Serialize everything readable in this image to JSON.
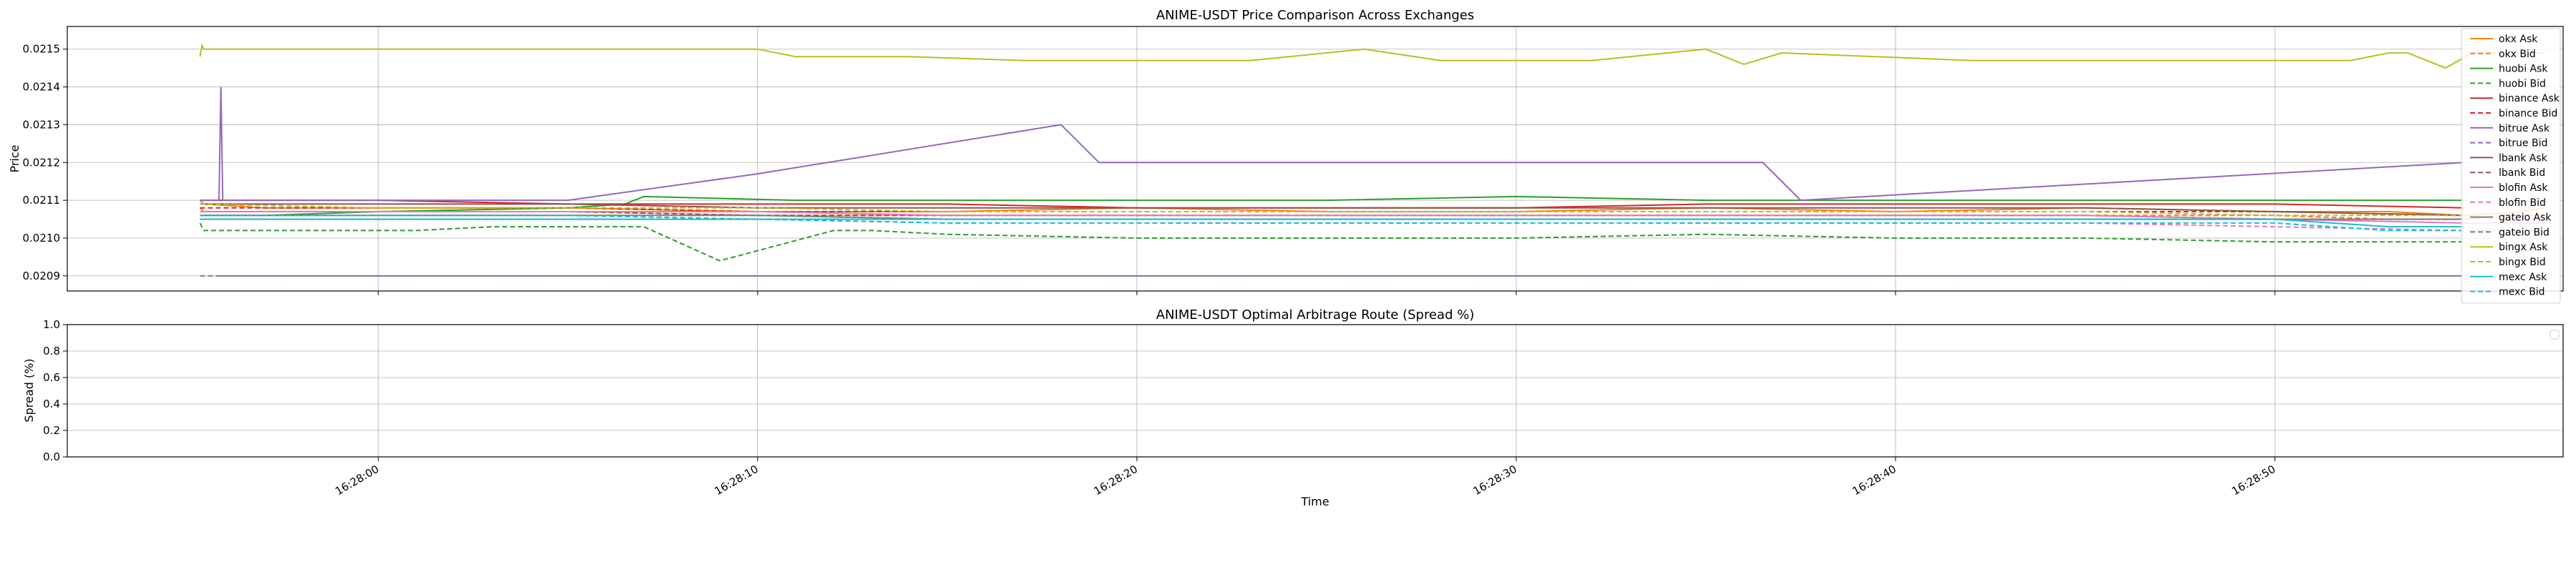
{
  "chart_data": [
    {
      "type": "line",
      "title": "ANIME-USDT Price Comparison Across Exchanges",
      "xlabel": "",
      "ylabel": "Price",
      "x_ticks": [
        "16:28:00",
        "16:28:10",
        "16:28:20",
        "16:28:30",
        "16:28:40",
        "16:28:50"
      ],
      "y_ticks": [
        "0.0209",
        "0.0210",
        "0.0211",
        "0.0212",
        "0.0213",
        "0.0214",
        "0.0215"
      ],
      "x_unit": "seconds after 16:27:55",
      "xlim": [
        -3.2,
        62.6
      ],
      "ylim": [
        0.02086,
        0.02156
      ],
      "grid": true,
      "legend_position": "top-right",
      "series": [
        {
          "name": "okx Ask",
          "color": "#ff7f0e",
          "dash": "solid",
          "x": [
            0.3,
            0.4,
            2,
            5,
            10,
            15,
            20,
            25,
            30,
            35,
            40,
            45,
            50,
            55,
            58,
            60,
            61.5,
            62.1
          ],
          "y": [
            0.0211,
            0.02109,
            0.02108,
            0.02108,
            0.02108,
            0.02107,
            0.02107,
            0.02108,
            0.02107,
            0.02107,
            0.02108,
            0.02107,
            0.02108,
            0.02107,
            0.02107,
            0.02106,
            0.02107,
            0.02108
          ]
        },
        {
          "name": "okx Bid",
          "color": "#ff7f0e",
          "dash": "dash",
          "x": [
            0.3,
            0.4,
            5,
            10,
            15,
            20,
            30,
            40,
            50,
            55,
            58,
            60,
            61,
            62.1
          ],
          "y": [
            0.02108,
            0.02107,
            0.02107,
            0.02107,
            0.02106,
            0.02106,
            0.02106,
            0.02106,
            0.02106,
            0.02106,
            0.02105,
            0.02105,
            0.02106,
            0.02106
          ]
        },
        {
          "name": "huobi Ask",
          "color": "#2ca02c",
          "dash": "solid",
          "x": [
            0.3,
            2,
            5,
            10,
            11.5,
            12,
            16,
            20,
            25,
            30,
            35,
            40,
            45,
            50,
            54,
            56,
            60
          ],
          "y": [
            0.02106,
            0.02106,
            0.02107,
            0.02108,
            0.02109,
            0.02111,
            0.0211,
            0.0211,
            0.0211,
            0.0211,
            0.02111,
            0.0211,
            0.0211,
            0.0211,
            0.0211,
            0.0211,
            0.0211
          ]
        },
        {
          "name": "huobi Bid",
          "color": "#2ca02c",
          "dash": "dash",
          "x": [
            0.3,
            0.4,
            6,
            8,
            12,
            14,
            17,
            18,
            20,
            25,
            30,
            35,
            40,
            45,
            50,
            55,
            58,
            60
          ],
          "y": [
            0.02104,
            0.02102,
            0.02102,
            0.02103,
            0.02103,
            0.02094,
            0.02102,
            0.02102,
            0.02101,
            0.021,
            0.021,
            0.021,
            0.02101,
            0.021,
            0.021,
            0.02099,
            0.02099,
            0.02099
          ]
        },
        {
          "name": "binance Ask",
          "color": "#d62728",
          "dash": "solid",
          "x": [
            0.3,
            2,
            5,
            10,
            15,
            20,
            25,
            30,
            35,
            40,
            45,
            50,
            55,
            60
          ],
          "y": [
            0.0211,
            0.0211,
            0.0211,
            0.02109,
            0.02109,
            0.02109,
            0.02108,
            0.02108,
            0.02108,
            0.02109,
            0.02109,
            0.02109,
            0.02109,
            0.02108
          ]
        },
        {
          "name": "binance Bid",
          "color": "#d62728",
          "dash": "dash",
          "x": [
            0.3,
            5,
            10,
            15,
            20,
            25,
            30,
            35,
            40,
            45,
            50,
            55,
            60
          ],
          "y": [
            0.02108,
            0.02108,
            0.02108,
            0.02107,
            0.02107,
            0.02107,
            0.02107,
            0.02107,
            0.02107,
            0.02107,
            0.02107,
            0.02107,
            0.02106
          ]
        },
        {
          "name": "bitrue Ask",
          "color": "#9467bd",
          "dash": "solid",
          "x": [
            0.3,
            0.8,
            0.85,
            0.9,
            1.5,
            10,
            15,
            23.0,
            24.0,
            35,
            41.5,
            42.5,
            60
          ],
          "y": [
            0.0211,
            0.0211,
            0.0214,
            0.0211,
            0.0211,
            0.0211,
            0.02117,
            0.0213,
            0.0212,
            0.0212,
            0.0212,
            0.0211,
            0.0212
          ]
        },
        {
          "name": "bitrue Bid",
          "color": "#9467bd",
          "dash": "dash",
          "x": [
            0.8,
            60
          ],
          "y": [
            0.0209,
            0.0209
          ]
        },
        {
          "name": "lbank Ask",
          "color": "#8c564b",
          "dash": "solid",
          "x": [
            0.3,
            2,
            5,
            10,
            15,
            20,
            25,
            30,
            35,
            40,
            45,
            50,
            55,
            60
          ],
          "y": [
            0.02109,
            0.02109,
            0.02109,
            0.02109,
            0.02108,
            0.02108,
            0.02108,
            0.02108,
            0.02108,
            0.02108,
            0.02108,
            0.02108,
            0.02107,
            0.02106
          ]
        },
        {
          "name": "lbank Bid",
          "color": "#8c564b",
          "dash": "dash",
          "x": [
            0.3,
            5,
            10,
            15,
            20,
            25,
            30,
            35,
            40,
            45,
            50,
            55,
            60
          ],
          "y": [
            0.02107,
            0.02107,
            0.02107,
            0.02106,
            0.02106,
            0.02106,
            0.02106,
            0.02106,
            0.02106,
            0.02106,
            0.02106,
            0.02105,
            0.02105
          ]
        },
        {
          "name": "blofin Ask",
          "color": "#e377c2",
          "dash": "solid",
          "x": [
            0.3,
            5,
            10,
            15,
            20,
            25,
            30,
            35,
            40,
            45,
            50,
            55,
            60,
            61,
            62.1
          ],
          "y": [
            0.02107,
            0.02107,
            0.02107,
            0.02107,
            0.02106,
            0.02106,
            0.02106,
            0.02106,
            0.02106,
            0.02106,
            0.02106,
            0.02105,
            0.02104,
            0.02104,
            0.02104
          ]
        },
        {
          "name": "blofin Bid",
          "color": "#e377c2",
          "dash": "dash",
          "x": [
            0.3,
            5,
            10,
            15,
            20,
            25,
            30,
            35,
            40,
            45,
            50,
            55,
            60,
            62.1
          ],
          "y": [
            0.02105,
            0.02105,
            0.02105,
            0.02105,
            0.02104,
            0.02104,
            0.02104,
            0.02104,
            0.02104,
            0.02104,
            0.02104,
            0.02103,
            0.02102,
            0.02102
          ]
        },
        {
          "name": "gateio Ask",
          "color": "#7f7f7f",
          "dash": "solid",
          "x": [
            0.3,
            5,
            10,
            15,
            20,
            25,
            30,
            35,
            40,
            45,
            50,
            55,
            60
          ],
          "y": [
            0.02106,
            0.02106,
            0.02106,
            0.02106,
            0.02105,
            0.02105,
            0.02105,
            0.02105,
            0.02105,
            0.02105,
            0.02105,
            0.02105,
            0.02105
          ]
        },
        {
          "name": "gateio Bid",
          "color": "#7f7f7f",
          "dash": "dash",
          "x": [
            0.3,
            60
          ],
          "y": [
            0.0209,
            0.0209
          ]
        },
        {
          "name": "bingx Ask",
          "color": "#bcbd22",
          "dash": "solid",
          "x": [
            0.3,
            0.35,
            0.4,
            15,
            16,
            19,
            22,
            28,
            31,
            33,
            37,
            40,
            41,
            42,
            47,
            52,
            57,
            58,
            58.5,
            59.5,
            60.2,
            61.5,
            62.1
          ],
          "y": [
            0.02148,
            0.02151,
            0.0215,
            0.0215,
            0.02148,
            0.02148,
            0.02147,
            0.02147,
            0.0215,
            0.02147,
            0.02147,
            0.0215,
            0.02146,
            0.02149,
            0.02147,
            0.02147,
            0.02147,
            0.02149,
            0.02149,
            0.02145,
            0.02149,
            0.02149,
            0.02149
          ]
        },
        {
          "name": "bingx Bid",
          "color": "#bcbd22",
          "dash": "dash",
          "x": [
            0.3,
            5,
            10,
            15,
            20,
            25,
            30,
            35,
            40,
            45,
            50,
            55,
            60
          ],
          "y": [
            0.02109,
            0.02108,
            0.02108,
            0.02108,
            0.02107,
            0.02107,
            0.02107,
            0.02107,
            0.02107,
            0.02107,
            0.02107,
            0.02106,
            0.02106
          ]
        },
        {
          "name": "mexc Ask",
          "color": "#17becf",
          "dash": "solid",
          "x": [
            0.3,
            5,
            10,
            15,
            20,
            25,
            30,
            35,
            40,
            45,
            50,
            55,
            58,
            60
          ],
          "y": [
            0.02105,
            0.02105,
            0.02105,
            0.02105,
            0.02105,
            0.02105,
            0.02105,
            0.02105,
            0.02105,
            0.02105,
            0.02105,
            0.02105,
            0.02103,
            0.02103
          ]
        },
        {
          "name": "mexc Bid",
          "color": "#17becf",
          "dash": "dash",
          "x": [
            0.3,
            5,
            10,
            15,
            20,
            25,
            30,
            35,
            40,
            45,
            50,
            55,
            58,
            60
          ],
          "y": [
            0.02106,
            0.02106,
            0.02106,
            0.02105,
            0.02104,
            0.02104,
            0.02104,
            0.02104,
            0.02104,
            0.02104,
            0.02104,
            0.02104,
            0.02102,
            0.02102
          ]
        }
      ]
    },
    {
      "type": "line",
      "title": "ANIME-USDT Optimal Arbitrage Route (Spread %)",
      "xlabel": "Time",
      "ylabel": "Spread (%)",
      "x_ticks": [
        "16:28:00",
        "16:28:10",
        "16:28:20",
        "16:28:30",
        "16:28:40",
        "16:28:50"
      ],
      "y_ticks": [
        "0.0",
        "0.2",
        "0.4",
        "0.6",
        "0.8",
        "1.0"
      ],
      "ylim": [
        0.0,
        1.0
      ],
      "grid": true,
      "series": []
    }
  ]
}
